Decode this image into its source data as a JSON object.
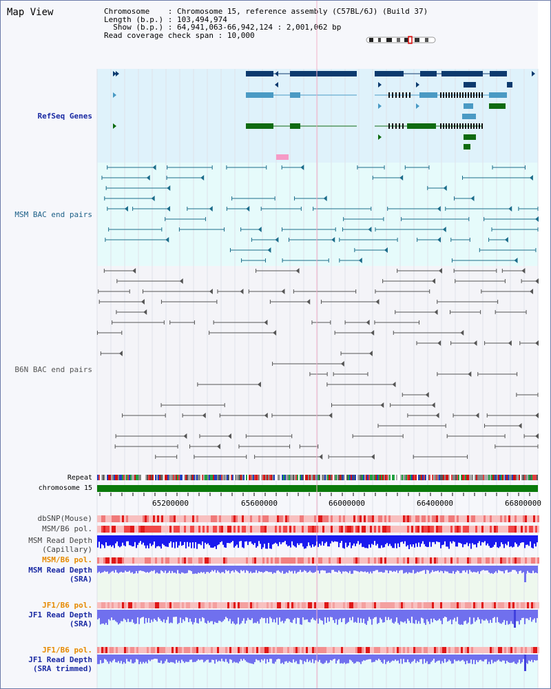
{
  "title": "Map View",
  "info": {
    "chromosome_key": "Chromosome",
    "chromosome_val": "Chromosome 15, reference assembly (C57BL/6J) (Build 37)",
    "length_key": "Length (b.p.)",
    "length_val": "103,494,974",
    "show_key": "Show (b.p.)",
    "show_val": "64,941,063-66,942,124 : 2,001,062 bp",
    "coverage_key": "Read coverage check span",
    "coverage_val": "10,000"
  },
  "tracks": {
    "refseq": "RefSeq Genes",
    "msm_bac": "MSM BAC end pairs",
    "b6n_bac": "B6N BAC end pairs",
    "repeat": "Repeat",
    "chromosome": "chromosome 15",
    "dbsnp": "dbSNP(Mouse)",
    "msm_b6_pol_1": "MSM/B6 pol.",
    "msm_depth_cap_1": "MSM Read Depth",
    "msm_depth_cap_2": "(Capillary)",
    "msm_b6_pol_2": "MSM/B6 pol.",
    "msm_depth_sra_1": "MSM Read Depth",
    "msm_depth_sra_2": "(SRA)",
    "jf1_b6_pol_1": "JF1/B6 pol.",
    "jf1_depth_sra_1": "JF1 Read Depth",
    "jf1_depth_sra_2": "(SRA)",
    "jf1_b6_pol_2": "JF1/B6 pol.",
    "jf1_depth_trim_1": "JF1 Read Depth",
    "jf1_depth_trim_2": "(SRA trimmed)"
  },
  "axis_ticks": [
    "65200000",
    "65600000",
    "66000000",
    "66400000",
    "66800000"
  ],
  "colors": {
    "refseq_bg": "#dff2fb",
    "msm_bg": "#e6fbfb",
    "gene_dark": "#0c3a6e",
    "gene_mid": "#4a9ac4",
    "gene_green": "#0f6b10",
    "msm_pair": "#1b6c8a",
    "b6n_pair": "#555555",
    "chromosome_bar": "#0b7a0b",
    "depth_blue": "#1a1aee",
    "depth_light": "#7070ee"
  }
}
